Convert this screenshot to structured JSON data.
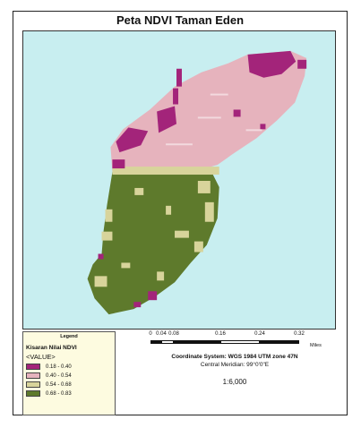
{
  "title": "Peta NDVI Taman Eden",
  "legend": {
    "heading": "Legend",
    "field": "Kisaran Nilai NDVI",
    "value_label": "<VALUE>",
    "classes": [
      {
        "label": "0.18 - 0.40",
        "color": "#a3247a"
      },
      {
        "label": "0.40 - 0.54",
        "color": "#e6b3bd"
      },
      {
        "label": "0.54 - 0.68",
        "color": "#d8d49b"
      },
      {
        "label": "0.68 - 0.83",
        "color": "#5e7a2c"
      }
    ]
  },
  "scale_bar": {
    "labels": [
      "0",
      "0.04",
      "0.08",
      "0.16",
      "0.24",
      "0.32"
    ],
    "units": "Miles"
  },
  "coordinate_system": "Coordinate System: WGS 1984 UTM zone 47N",
  "central_meridian": "Central Meridian: 99°0'0\"E",
  "scale_ratio": "1:6,000",
  "colors": {
    "water": "#c8eef0"
  }
}
